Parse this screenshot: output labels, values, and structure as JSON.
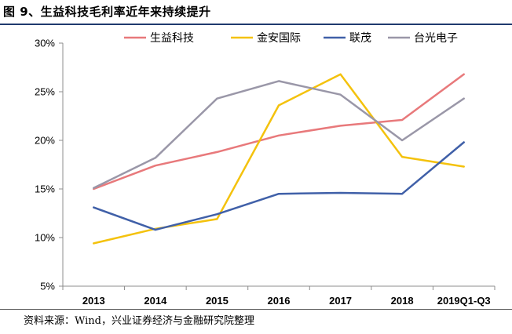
{
  "figure": {
    "title": "图 9、生益科技毛利率近年来持续提升",
    "source": "资料来源：Wind，兴业证券经济与金融研究院整理"
  },
  "chart_data": {
    "type": "line",
    "title": "",
    "xlabel": "",
    "ylabel": "",
    "categories": [
      "2013",
      "2014",
      "2015",
      "2016",
      "2017",
      "2018",
      "2019Q1-Q3"
    ],
    "yticks": [
      "5%",
      "10%",
      "15%",
      "20%",
      "25%",
      "30%"
    ],
    "ylim": [
      5,
      30
    ],
    "y_unit": "%",
    "grid": false,
    "legend_position": "top",
    "series": [
      {
        "name": "生益科技",
        "color": "#e8797b",
        "values": [
          15.0,
          17.4,
          18.8,
          20.5,
          21.5,
          22.1,
          26.8
        ]
      },
      {
        "name": "金安国际",
        "color": "#f4c20d",
        "values": [
          9.4,
          10.9,
          11.9,
          23.6,
          26.8,
          18.3,
          17.3
        ]
      },
      {
        "name": "联茂",
        "color": "#4060a8",
        "values": [
          13.1,
          10.8,
          12.4,
          14.5,
          14.6,
          14.5,
          19.8
        ]
      },
      {
        "name": "台光电子",
        "color": "#9a97a8",
        "values": [
          15.1,
          18.2,
          24.3,
          26.1,
          24.7,
          20.0,
          24.3
        ]
      }
    ]
  }
}
